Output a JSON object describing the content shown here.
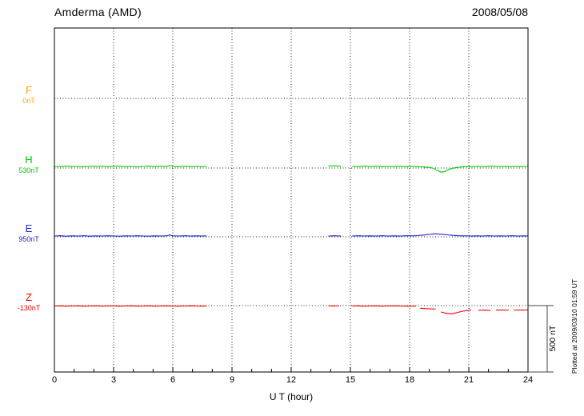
{
  "header": {
    "station": "Amderma (AMD)",
    "date": "2008/05/08"
  },
  "footer_note": "Plotted at 2009/03/10 01:59 UT",
  "chart_data": {
    "type": "line",
    "title": "Amderma (AMD)",
    "subtitle": "2008/05/08",
    "xlabel": "U T (hour)",
    "ylabel": "",
    "x_range": [
      0,
      24
    ],
    "x_ticks": [
      0,
      3,
      6,
      9,
      12,
      15,
      18,
      21,
      24
    ],
    "x_gridlines": [
      3,
      6,
      9,
      12,
      15,
      18,
      21
    ],
    "grid": "dotted",
    "legend_position": "left",
    "scale_bar": {
      "label": "500 nT",
      "nT": 500
    },
    "series": [
      {
        "name": "F",
        "baseline_label": "0nT",
        "color": "#FFA500",
        "segments": []
      },
      {
        "name": "H",
        "baseline_label": "530nT",
        "color": "#00CC00",
        "segments": [
          [
            [
              0,
              12
            ],
            [
              0.3,
              10
            ],
            [
              0.6,
              14
            ],
            [
              0.9,
              10
            ],
            [
              1.2,
              12
            ],
            [
              1.5,
              9
            ],
            [
              1.8,
              13
            ],
            [
              2.1,
              11
            ],
            [
              2.4,
              13
            ],
            [
              2.7,
              10
            ],
            [
              3.0,
              12
            ],
            [
              3.3,
              14
            ],
            [
              3.6,
              10
            ],
            [
              3.9,
              12
            ],
            [
              4.2,
              9
            ],
            [
              4.5,
              12
            ],
            [
              4.8,
              14
            ],
            [
              5.1,
              11
            ],
            [
              5.4,
              13
            ],
            [
              5.7,
              10
            ],
            [
              5.85,
              20
            ],
            [
              6.0,
              12
            ],
            [
              6.3,
              10
            ],
            [
              6.6,
              13
            ],
            [
              6.9,
              11
            ],
            [
              7.2,
              12
            ],
            [
              7.5,
              10
            ],
            [
              7.7,
              12
            ]
          ],
          [
            [
              13.9,
              14
            ],
            [
              14.2,
              16
            ],
            [
              14.5,
              13
            ]
          ],
          [
            [
              15.1,
              12
            ],
            [
              15.4,
              10
            ],
            [
              15.7,
              13
            ],
            [
              16.0,
              11
            ],
            [
              16.3,
              13
            ],
            [
              16.6,
              10
            ],
            [
              16.9,
              12
            ],
            [
              17.2,
              11
            ],
            [
              17.5,
              13
            ],
            [
              17.8,
              10
            ],
            [
              18.1,
              12
            ],
            [
              18.4,
              10
            ],
            [
              18.7,
              8
            ],
            [
              19.0,
              5
            ],
            [
              19.2,
              -2
            ],
            [
              19.4,
              -18
            ],
            [
              19.6,
              -32
            ],
            [
              19.8,
              -25
            ],
            [
              20.0,
              -10
            ],
            [
              20.3,
              2
            ],
            [
              20.6,
              8
            ],
            [
              20.9,
              11
            ],
            [
              21.2,
              10
            ],
            [
              21.5,
              12
            ],
            [
              21.8,
              10
            ],
            [
              22.1,
              13
            ],
            [
              22.4,
              11
            ],
            [
              22.7,
              12
            ],
            [
              23.0,
              10
            ],
            [
              23.3,
              12
            ],
            [
              23.6,
              11
            ],
            [
              24,
              12
            ]
          ]
        ]
      },
      {
        "name": "E",
        "baseline_label": "950nT",
        "color": "#2222CC",
        "segments": [
          [
            [
              0,
              6
            ],
            [
              0.3,
              8
            ],
            [
              0.6,
              5
            ],
            [
              0.9,
              7
            ],
            [
              1.2,
              6
            ],
            [
              1.5,
              8
            ],
            [
              1.8,
              5
            ],
            [
              2.1,
              7
            ],
            [
              2.4,
              6
            ],
            [
              2.7,
              8
            ],
            [
              3.0,
              6
            ],
            [
              3.3,
              5
            ],
            [
              3.6,
              7
            ],
            [
              3.9,
              6
            ],
            [
              4.2,
              8
            ],
            [
              4.5,
              6
            ],
            [
              4.8,
              5
            ],
            [
              5.1,
              7
            ],
            [
              5.4,
              6
            ],
            [
              5.7,
              8
            ],
            [
              5.85,
              14
            ],
            [
              6.0,
              7
            ],
            [
              6.3,
              6
            ],
            [
              6.6,
              8
            ],
            [
              6.9,
              6
            ],
            [
              7.2,
              7
            ],
            [
              7.5,
              6
            ],
            [
              7.7,
              7
            ]
          ],
          [
            [
              13.9,
              6
            ],
            [
              14.2,
              8
            ],
            [
              14.5,
              6
            ]
          ],
          [
            [
              15.1,
              6
            ],
            [
              15.4,
              8
            ],
            [
              15.7,
              6
            ],
            [
              16.0,
              7
            ],
            [
              16.3,
              6
            ],
            [
              16.6,
              8
            ],
            [
              16.9,
              6
            ],
            [
              17.2,
              7
            ],
            [
              17.5,
              6
            ],
            [
              17.8,
              8
            ],
            [
              18.1,
              7
            ],
            [
              18.4,
              9
            ],
            [
              18.7,
              13
            ],
            [
              19.0,
              18
            ],
            [
              19.3,
              22
            ],
            [
              19.6,
              19
            ],
            [
              19.9,
              15
            ],
            [
              20.2,
              11
            ],
            [
              20.5,
              8
            ],
            [
              20.8,
              7
            ],
            [
              21.1,
              6
            ],
            [
              21.4,
              7
            ],
            [
              21.7,
              6
            ],
            [
              22.0,
              8
            ],
            [
              22.3,
              6
            ],
            [
              22.6,
              7
            ],
            [
              22.9,
              6
            ],
            [
              23.2,
              8
            ],
            [
              23.5,
              6
            ],
            [
              23.8,
              7
            ],
            [
              24,
              6
            ]
          ]
        ]
      },
      {
        "name": "Z",
        "baseline_label": "-130nT",
        "color": "#EE0000",
        "segments": [
          [
            [
              0,
              -3
            ],
            [
              0.3,
              -2
            ],
            [
              0.6,
              -4
            ],
            [
              0.9,
              -3
            ],
            [
              1.2,
              -2
            ],
            [
              1.5,
              -4
            ],
            [
              1.8,
              -3
            ],
            [
              2.1,
              -2
            ],
            [
              2.4,
              -4
            ],
            [
              2.7,
              -3
            ],
            [
              3.0,
              -2
            ],
            [
              3.3,
              -4
            ],
            [
              3.6,
              -3
            ],
            [
              3.9,
              -2
            ],
            [
              4.2,
              -4
            ],
            [
              4.5,
              -3
            ],
            [
              4.8,
              -2
            ],
            [
              5.1,
              -4
            ],
            [
              5.4,
              -3
            ],
            [
              5.7,
              -2
            ],
            [
              6.0,
              -3
            ],
            [
              6.3,
              -4
            ],
            [
              6.6,
              -3
            ],
            [
              6.9,
              -2
            ],
            [
              7.2,
              -3
            ],
            [
              7.5,
              -4
            ],
            [
              7.7,
              -3
            ]
          ],
          [
            [
              13.9,
              -2
            ],
            [
              14.2,
              -3
            ],
            [
              14.4,
              -2
            ]
          ],
          [
            [
              15.1,
              -3
            ],
            [
              15.4,
              -2
            ],
            [
              15.7,
              -4
            ],
            [
              16.0,
              -3
            ],
            [
              16.3,
              -2
            ],
            [
              16.6,
              -4
            ],
            [
              16.9,
              -3
            ],
            [
              17.2,
              -2
            ],
            [
              17.5,
              -3
            ],
            [
              17.8,
              -4
            ],
            [
              18.1,
              -4
            ],
            [
              18.3,
              -5
            ]
          ],
          [
            [
              18.55,
              -20
            ],
            [
              18.8,
              -23
            ],
            [
              19.05,
              -24
            ],
            [
              19.3,
              -26
            ]
          ],
          [
            [
              19.6,
              -48
            ],
            [
              19.85,
              -58
            ],
            [
              20.1,
              -62
            ],
            [
              20.35,
              -55
            ],
            [
              20.6,
              -45
            ],
            [
              20.85,
              -38
            ],
            [
              21.1,
              -33
            ]
          ],
          [
            [
              21.5,
              -36
            ],
            [
              21.8,
              -34
            ],
            [
              22.1,
              -36
            ]
          ],
          [
            [
              22.4,
              -34
            ],
            [
              22.7,
              -33
            ],
            [
              23.0,
              -35
            ]
          ],
          [
            [
              23.3,
              -33
            ],
            [
              23.6,
              -34
            ],
            [
              24,
              -33
            ]
          ]
        ]
      }
    ]
  }
}
